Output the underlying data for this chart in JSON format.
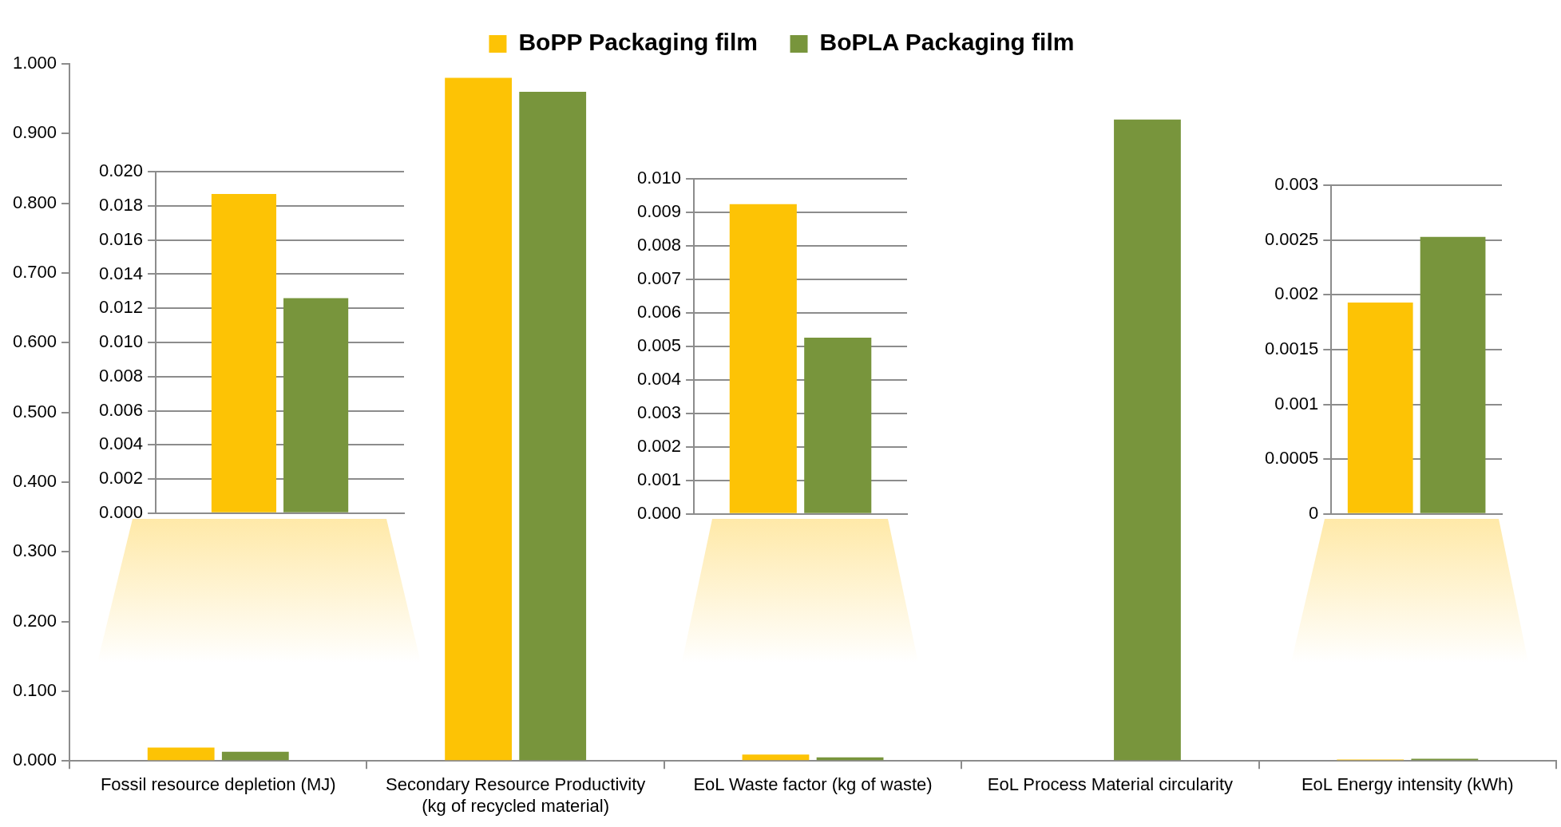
{
  "chart_data": [
    {
      "type": "bar",
      "categories": [
        "Fossil resource depletion (MJ)",
        "Secondary Resource Productivity (kg of recycled material)",
        "EoL Waste factor (kg of waste)",
        "EoL Process Material circularity",
        "EoL Energy intensity (kWh)"
      ],
      "series": [
        {
          "name": "BoPP Packaging film",
          "color": "#fdc305",
          "values": [
            0.019,
            0.98,
            0.009,
            0,
            0.002
          ]
        },
        {
          "name": "BoPLA Packaging film",
          "color": "#78953c",
          "values": [
            0.013,
            0.96,
            0.005,
            0.92,
            0.003
          ]
        }
      ],
      "ylim": [
        0,
        1
      ],
      "yticks": [
        {
          "value": 0,
          "label": "0.000"
        },
        {
          "value": 0.1,
          "label": "0.100"
        },
        {
          "value": 0.2,
          "label": "0.200"
        },
        {
          "value": 0.3,
          "label": "0.300"
        },
        {
          "value": 0.4,
          "label": "0.400"
        },
        {
          "value": 0.5,
          "label": "0.500"
        },
        {
          "value": 0.6,
          "label": "0.600"
        },
        {
          "value": 0.7,
          "label": "0.700"
        },
        {
          "value": 0.8,
          "label": "0.800"
        },
        {
          "value": 0.9,
          "label": "0.900"
        },
        {
          "value": 1,
          "label": "1.000"
        }
      ],
      "grid": false,
      "legend": "top"
    },
    {
      "type": "bar",
      "categories": [
        null
      ],
      "series": [
        {
          "color": "#fdc305",
          "values": [
            0.0187
          ]
        },
        {
          "color": "#78953c",
          "values": [
            0.0126
          ]
        }
      ],
      "ylim": [
        0,
        0.02
      ],
      "yticks": [
        {
          "value": 0,
          "label": "0.000"
        },
        {
          "value": 0.002,
          "label": "0.002"
        },
        {
          "value": 0.004,
          "label": "0.004"
        },
        {
          "value": 0.006,
          "label": "0.006"
        },
        {
          "value": 0.008,
          "label": "0.008"
        },
        {
          "value": 0.01,
          "label": "0.010"
        },
        {
          "value": 0.012,
          "label": "0.012"
        },
        {
          "value": 0.014,
          "label": "0.014"
        },
        {
          "value": 0.016,
          "label": "0.016"
        },
        {
          "value": 0.018,
          "label": "0.018"
        },
        {
          "value": 0.02,
          "label": "0.020"
        }
      ],
      "grid": "y",
      "tick_labels": "y"
    },
    {
      "type": "bar",
      "categories": [
        null
      ],
      "series": [
        {
          "color": "#fdc305",
          "values": [
            0.00925
          ]
        },
        {
          "color": "#78953c",
          "values": [
            0.00526
          ]
        }
      ],
      "ylim": [
        0,
        0.01
      ],
      "yticks": [
        {
          "value": 0,
          "label": "0.000"
        },
        {
          "value": 0.001,
          "label": "0.001"
        },
        {
          "value": 0.002,
          "label": "0.002"
        },
        {
          "value": 0.003,
          "label": "0.003"
        },
        {
          "value": 0.004,
          "label": "0.004"
        },
        {
          "value": 0.005,
          "label": "0.005"
        },
        {
          "value": 0.006,
          "label": "0.006"
        },
        {
          "value": 0.007,
          "label": "0.007"
        },
        {
          "value": 0.008,
          "label": "0.008"
        },
        {
          "value": 0.009,
          "label": "0.009"
        },
        {
          "value": 0.01,
          "label": "0.010"
        }
      ],
      "grid": "y",
      "tick_labels": "y"
    },
    {
      "type": "bar",
      "categories": [
        null
      ],
      "series": [
        {
          "color": "#fdc305",
          "values": [
            0.00193
          ]
        },
        {
          "color": "#78953c",
          "values": [
            0.00253
          ]
        }
      ],
      "ylim": [
        0,
        0.003
      ],
      "yticks": [
        0,
        0.0005,
        0.001,
        0.0015,
        0.002,
        0.0025,
        0.003
      ],
      "grid": "y",
      "tick_labels": "y"
    }
  ]
}
